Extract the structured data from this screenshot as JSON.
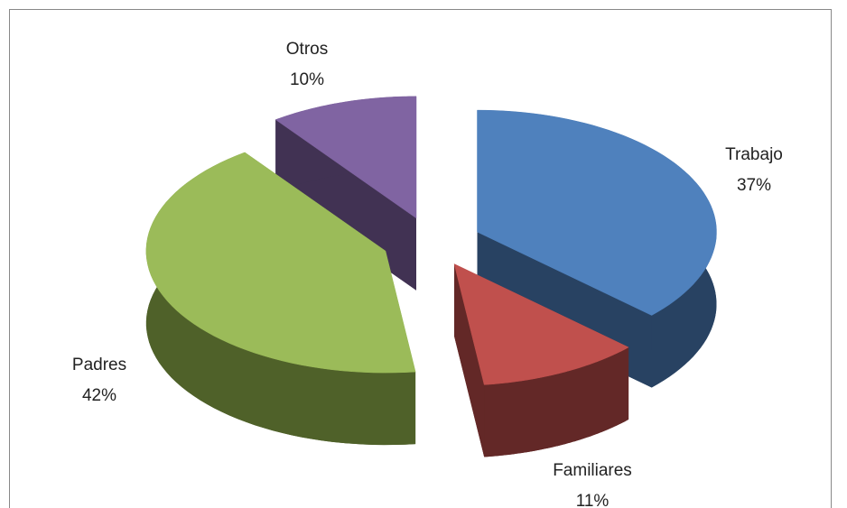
{
  "chart_data": {
    "type": "pie3d",
    "categories": [
      "Trabajo",
      "Familiares",
      "Padres",
      "Otros"
    ],
    "values": [
      37,
      11,
      42,
      10
    ],
    "value_labels": [
      "37%",
      "11%",
      "42%",
      "10%"
    ],
    "colors": [
      "#4f81bd",
      "#c0504d",
      "#9bbb59",
      "#8064a2"
    ],
    "side_colors": [
      "#284262",
      "#632827",
      "#4f6129",
      "#413253"
    ]
  }
}
